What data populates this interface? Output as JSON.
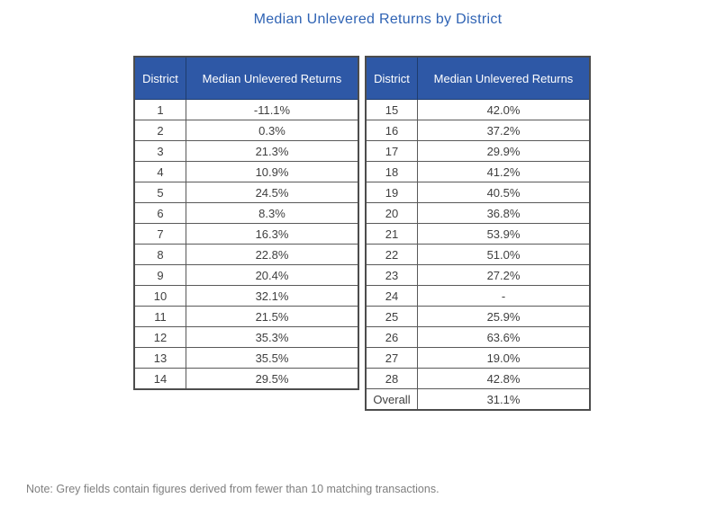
{
  "title": "Median Unlevered Returns by District",
  "note": "Note: Grey fields contain figures derived from fewer than 10 matching transactions.",
  "columns": {
    "district": "District",
    "returns": "Median Unlevered Returns"
  },
  "tables": [
    {
      "name": "districts-1-14",
      "rows": [
        {
          "district": "1",
          "value": "-11.1%",
          "shade": "none"
        },
        {
          "district": "2",
          "value": "0.3%",
          "shade": "light"
        },
        {
          "district": "3",
          "value": "21.3%",
          "shade": "none"
        },
        {
          "district": "4",
          "value": "10.9%",
          "shade": "none"
        },
        {
          "district": "5",
          "value": "24.5%",
          "shade": "none"
        },
        {
          "district": "6",
          "value": "8.3%",
          "shade": "light"
        },
        {
          "district": "7",
          "value": "16.3%",
          "shade": "light"
        },
        {
          "district": "8",
          "value": "22.8%",
          "shade": "light"
        },
        {
          "district": "9",
          "value": "20.4%",
          "shade": "none"
        },
        {
          "district": "10",
          "value": "32.1%",
          "shade": "none"
        },
        {
          "district": "11",
          "value": "21.5%",
          "shade": "none"
        },
        {
          "district": "12",
          "value": "35.3%",
          "shade": "none"
        },
        {
          "district": "13",
          "value": "35.5%",
          "shade": "none"
        },
        {
          "district": "14",
          "value": "29.5%",
          "shade": "none"
        }
      ]
    },
    {
      "name": "districts-15-28-overall",
      "rows": [
        {
          "district": "15",
          "value": "42.0%",
          "shade": "none"
        },
        {
          "district": "16",
          "value": "37.2%",
          "shade": "none"
        },
        {
          "district": "17",
          "value": "29.9%",
          "shade": "none"
        },
        {
          "district": "18",
          "value": "41.2%",
          "shade": "none"
        },
        {
          "district": "19",
          "value": "40.5%",
          "shade": "none"
        },
        {
          "district": "20",
          "value": "36.8%",
          "shade": "none"
        },
        {
          "district": "21",
          "value": "53.9%",
          "shade": "none"
        },
        {
          "district": "22",
          "value": "51.0%",
          "shade": "none"
        },
        {
          "district": "23",
          "value": "27.2%",
          "shade": "none"
        },
        {
          "district": "24",
          "value": "-",
          "shade": "dark"
        },
        {
          "district": "25",
          "value": "25.9%",
          "shade": "light"
        },
        {
          "district": "26",
          "value": "63.6%",
          "shade": "light"
        },
        {
          "district": "27",
          "value": "19.0%",
          "shade": "none"
        },
        {
          "district": "28",
          "value": "42.8%",
          "shade": "none"
        },
        {
          "district": "Overall",
          "value": "31.1%",
          "shade": "none"
        }
      ]
    }
  ],
  "colors": {
    "header_bg": "#2E58A6",
    "header_border": "#1E3C6E",
    "title": "#2F63B4",
    "grey_light": "#E9E9E9",
    "grey_dark": "#A6A6A6",
    "note": "#7F7F7F",
    "cell_border": "#595959",
    "outer_border": "#4D4D4D",
    "cell_text": "#3F3F3F"
  },
  "chart_data": {
    "type": "table",
    "title": "Median Unlevered Returns by District",
    "columns": [
      "District",
      "Median Unlevered Returns"
    ],
    "unit": "%",
    "rows": [
      [
        "1",
        -11.1
      ],
      [
        "2",
        0.3
      ],
      [
        "3",
        21.3
      ],
      [
        "4",
        10.9
      ],
      [
        "5",
        24.5
      ],
      [
        "6",
        8.3
      ],
      [
        "7",
        16.3
      ],
      [
        "8",
        22.8
      ],
      [
        "9",
        20.4
      ],
      [
        "10",
        32.1
      ],
      [
        "11",
        21.5
      ],
      [
        "12",
        35.3
      ],
      [
        "13",
        35.5
      ],
      [
        "14",
        29.5
      ],
      [
        "15",
        42.0
      ],
      [
        "16",
        37.2
      ],
      [
        "17",
        29.9
      ],
      [
        "18",
        41.2
      ],
      [
        "19",
        40.5
      ],
      [
        "20",
        36.8
      ],
      [
        "21",
        53.9
      ],
      [
        "22",
        51.0
      ],
      [
        "23",
        27.2
      ],
      [
        "24",
        null
      ],
      [
        "25",
        25.9
      ],
      [
        "26",
        63.6
      ],
      [
        "27",
        19.0
      ],
      [
        "28",
        42.8
      ],
      [
        "Overall",
        31.1
      ]
    ],
    "grey_flagged_districts": [
      "2",
      "6",
      "7",
      "8",
      "24",
      "25",
      "26"
    ],
    "note": "Note: Grey fields contain figures derived from fewer than 10 matching transactions."
  }
}
